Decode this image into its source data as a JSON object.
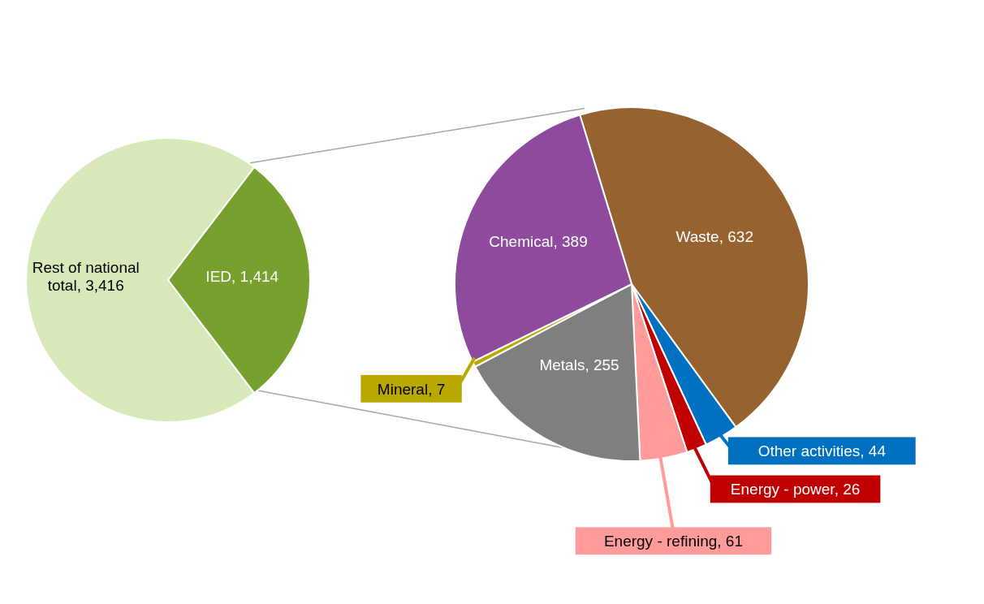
{
  "chart_data": [
    {
      "type": "pie",
      "categories": [
        "IED",
        "Rest of national total"
      ],
      "values": [
        1414,
        3416
      ],
      "colors": [
        "#77a02e",
        "#d7e9b9"
      ],
      "value_labels": [
        "1,414",
        "3,416"
      ]
    },
    {
      "type": "pie",
      "categories": [
        "Waste",
        "Other activities",
        "Energy - power",
        "Energy - refining",
        "Metals",
        "Mineral",
        "Chemical"
      ],
      "values": [
        632,
        44,
        26,
        61,
        255,
        7,
        389
      ],
      "colors": [
        "#96622f",
        "#0070c0",
        "#c00000",
        "#ff9b9b",
        "#7f7f7f",
        "#b8a800",
        "#8e4a9c"
      ],
      "value_labels": [
        "632",
        "44",
        "26",
        "61",
        "255",
        "7",
        "389"
      ]
    }
  ]
}
